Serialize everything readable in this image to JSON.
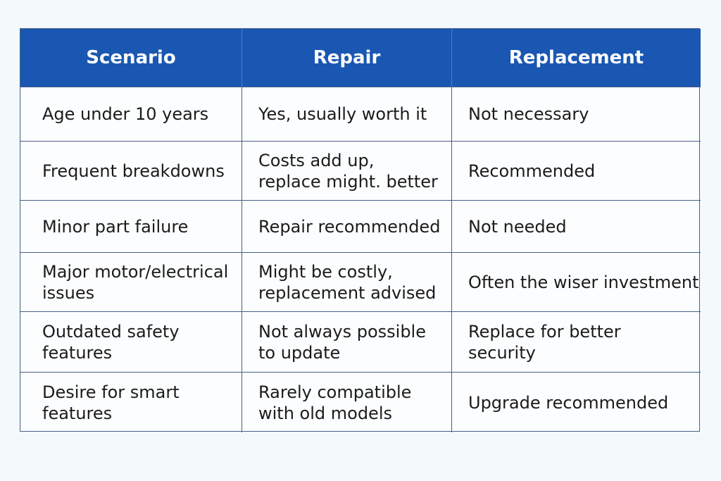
{
  "table": {
    "header": [
      "Scenario",
      "Repair",
      "Replacement"
    ],
    "rows": [
      [
        [
          "Age under 10 years"
        ],
        [
          "Yes, usually worth it"
        ],
        [
          "Not necessary"
        ]
      ],
      [
        [
          "Frequent breakdowns"
        ],
        [
          "Costs add up,",
          "replace might. better"
        ],
        [
          "Recommended"
        ]
      ],
      [
        [
          "Minor part failure"
        ],
        [
          "Repair recommended"
        ],
        [
          "Not needed"
        ]
      ],
      [
        [
          "Major motor/electrical",
          "issues"
        ],
        [
          "Might be costly,",
          "replacement advised"
        ],
        [
          "Often the wiser investment"
        ]
      ],
      [
        [
          "Outdated safety",
          "features"
        ],
        [
          "Not always possible",
          "to update"
        ],
        [
          "Replace for better",
          "security"
        ]
      ],
      [
        [
          "Desire for smart",
          "features"
        ],
        [
          "Rarely compatible",
          "with old models"
        ],
        [
          "Upgrade recommended"
        ]
      ]
    ]
  }
}
